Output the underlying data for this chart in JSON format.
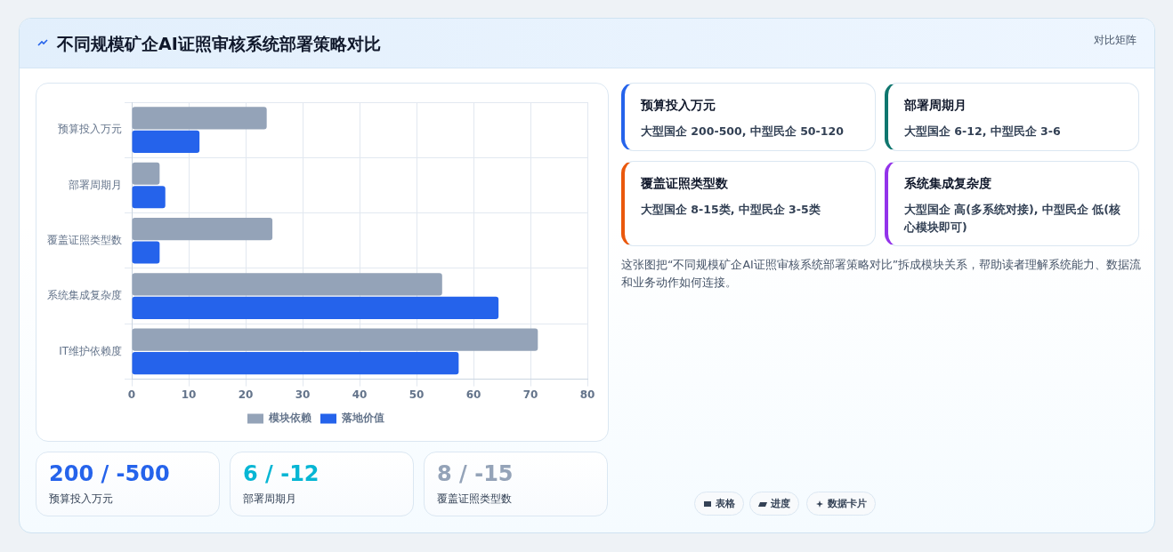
{
  "chart_data": [
    {
      "type": "bar",
      "title": "不同规模矿企AI证照审核系统部署策略对比",
      "orientation": "horizontal",
      "categories": [
        "预算投入万元",
        "部署周期月",
        "覆盖证照类型数",
        "系统集成复杂度",
        "IT维护依赖度"
      ],
      "series": [
        {
          "name": "模块依赖",
          "color": "#94a3b8",
          "values": [
            23.7,
            4.9,
            24.7,
            54.5,
            71.3
          ]
        },
        {
          "name": "落地价值",
          "color": "#2563eb",
          "values": [
            11.9,
            5.9,
            4.9,
            64.4,
            57.4
          ]
        }
      ],
      "xlim": [
        0,
        80
      ],
      "xticks": [
        0,
        10,
        20,
        30,
        40,
        50,
        60,
        70,
        80
      ],
      "grid": true,
      "legend": "bottom"
    },
    {
      "type": "other",
      "title": "对比矩阵",
      "annotations": [
        "预算投入万元",
        "大型国企 200-500, 中型民企 50-120",
        "部署周期月",
        "大型国企 6-12, 中型民企 3-6",
        "覆盖证照类型数",
        "大型国企 8-15类, 中型民企 3-5类",
        "系统集成复杂度",
        "大型国企 高(多系统对接), 中型民企 低(核心模块即可)",
        "这张图把“不同规模矿企AI证照审核系统部署策略对比”拆成模块关系，帮助读者理解系统能力、数据流和业务动作如何连接。",
        "200 / -500",
        "预算投入万元",
        "6 / -12",
        "部署周期月",
        "8 / -15",
        "覆盖证照类型数",
        "表格",
        "进度",
        "数据卡片"
      ]
    }
  ]
}
